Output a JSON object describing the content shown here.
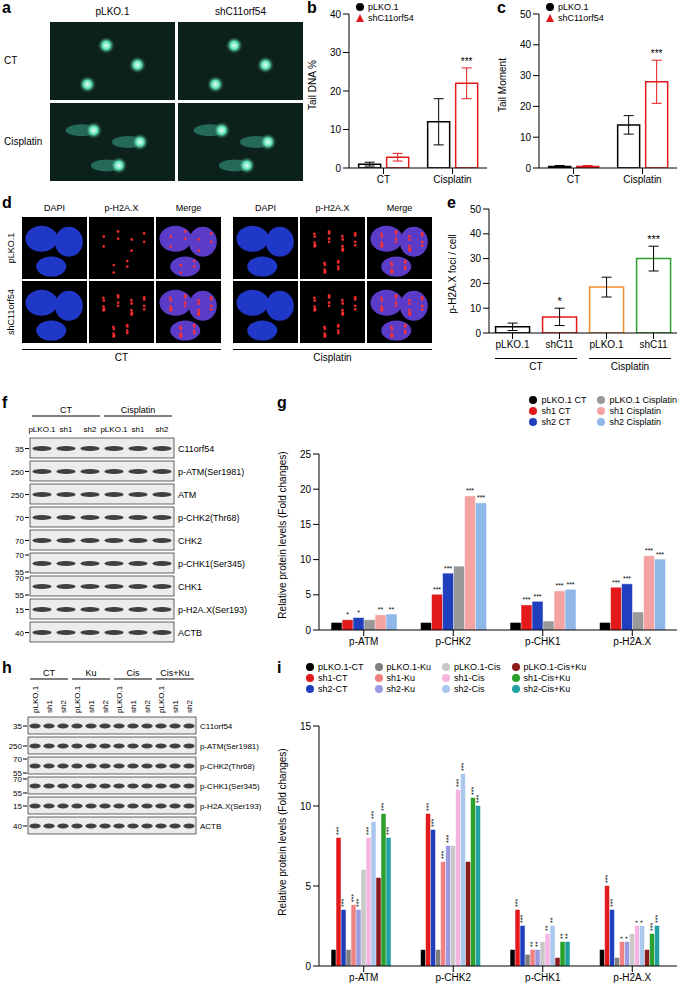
{
  "images": [
    {
      "panel": "a",
      "columns": [
        "pLKO.1",
        "shC11orf54"
      ],
      "rows": [
        "CT",
        "Cisplatin"
      ]
    },
    {
      "panel": "d",
      "channels": [
        "DAPI",
        "p-H2A.X",
        "Merge"
      ],
      "rows": [
        "pLKO.1",
        "shC11orf54"
      ],
      "conditions": [
        "CT",
        "Cisplatin"
      ]
    }
  ],
  "blots": [
    {
      "panel": "f",
      "conditions": [
        "CT",
        "Cisplatin"
      ],
      "lanes": [
        "pLKO.1",
        "sh1",
        "sh2"
      ],
      "rows": [
        {
          "name": "C11orf54",
          "markers": [
            35
          ]
        },
        {
          "name": "p-ATM(Ser1981)",
          "markers": [
            250
          ]
        },
        {
          "name": "ATM",
          "markers": [
            250
          ]
        },
        {
          "name": "p-CHK2(Thr68)",
          "markers": [
            70
          ]
        },
        {
          "name": "CHK2",
          "markers": [
            70
          ]
        },
        {
          "name": "p-CHK1(Ser345)",
          "markers": [
            70,
            55
          ]
        },
        {
          "name": "CHK1",
          "markers": [
            70,
            55
          ]
        },
        {
          "name": "p-H2A.X(Ser193)",
          "markers": [
            15
          ]
        },
        {
          "name": "ACTB",
          "markers": [
            40
          ]
        }
      ]
    },
    {
      "panel": "h",
      "conditions": [
        "CT",
        "Ku",
        "Cis",
        "Cis+Ku"
      ],
      "lanes": [
        "pLKO.1",
        "sh1",
        "sh2"
      ],
      "rows": [
        {
          "name": "C11orf54",
          "markers": [
            35
          ]
        },
        {
          "name": "p-ATM(Ser1981)",
          "markers": [
            250
          ]
        },
        {
          "name": "p-CHK2(Thr68)",
          "markers": [
            70,
            55
          ]
        },
        {
          "name": "p-CHK1(Ser345)",
          "markers": [
            70,
            55
          ]
        },
        {
          "name": "p-H2A.X(Ser193)",
          "markers": [
            15
          ]
        },
        {
          "name": "ACTB",
          "markers": [
            40
          ]
        }
      ]
    }
  ],
  "chart_data": [
    {
      "panel": "b",
      "type": "bar",
      "y_label": "Tail DNA %",
      "categories": [
        "CT",
        "Cisplatin"
      ],
      "ylim": [
        0,
        40
      ],
      "yticks": [
        0,
        10,
        20,
        30,
        40
      ],
      "legend": "top-left",
      "series": [
        {
          "name": "pLKO.1",
          "color": "#000000",
          "marker": "circle",
          "values": [
            1,
            12
          ],
          "errors": [
            0.5,
            6
          ],
          "significance": [
            null,
            null
          ]
        },
        {
          "name": "shC11orf54",
          "color": "#e31a1c",
          "marker": "triangle",
          "values": [
            2.8,
            22
          ],
          "errors": [
            1,
            4
          ],
          "significance": [
            null,
            "***"
          ]
        }
      ]
    },
    {
      "panel": "c",
      "type": "bar",
      "y_label": "Tail Moment",
      "categories": [
        "CT",
        "Cisplatin"
      ],
      "ylim": [
        0,
        50
      ],
      "yticks": [
        0,
        10,
        20,
        30,
        40,
        50
      ],
      "legend": "top-left",
      "series": [
        {
          "name": "pLKO.1",
          "color": "#000000",
          "marker": "circle",
          "values": [
            0.5,
            14
          ],
          "errors": [
            0.3,
            3
          ],
          "significance": [
            null,
            null
          ]
        },
        {
          "name": "shC11orf54",
          "color": "#e31a1c",
          "marker": "triangle",
          "values": [
            0.5,
            28
          ],
          "errors": [
            0.3,
            7
          ],
          "significance": [
            null,
            "***"
          ]
        }
      ]
    },
    {
      "panel": "e",
      "type": "bar",
      "y_label": "p-H2A.X foci / cell",
      "categories": [
        "pLKO.1",
        "shC11",
        "pLKO.1",
        "shC11"
      ],
      "groups": [
        "CT",
        "Cisplatin"
      ],
      "ylim": [
        0,
        50
      ],
      "yticks": [
        0,
        10,
        20,
        30,
        40,
        50
      ],
      "series": [
        {
          "colors": [
            "#000000",
            "#e31a1c",
            "#f28e2b",
            "#2ca02c"
          ],
          "values": [
            2.5,
            6.5,
            18.5,
            30
          ],
          "errors": [
            1.5,
            3.5,
            4,
            5
          ],
          "significance": [
            null,
            "*",
            null,
            "***"
          ]
        }
      ]
    },
    {
      "panel": "g",
      "type": "bar",
      "y_label": "Relative protein levels (Fold changes)",
      "categories": [
        "p-ATM",
        "p-CHK2",
        "p-CHK1",
        "p-H2A.X"
      ],
      "ylim": [
        0,
        25
      ],
      "yticks": [
        0,
        5,
        10,
        15,
        20,
        25
      ],
      "legend": "top-right",
      "series": [
        {
          "name": "pLKO.1 CT",
          "color": "#000000",
          "values": [
            1,
            1,
            1,
            1
          ]
        },
        {
          "name": "sh1 CT",
          "color": "#e31a1c",
          "values": [
            1.4,
            5,
            3.5,
            6
          ],
          "significance": [
            "*",
            "***",
            "***",
            "***"
          ]
        },
        {
          "name": "sh2 CT",
          "color": "#1f3fbf",
          "values": [
            1.7,
            8,
            4,
            6.5
          ],
          "significance": [
            "*",
            "***",
            "***",
            "***"
          ]
        },
        {
          "name": "pLKO.1 Cisplatin",
          "color": "#999999",
          "values": [
            1.4,
            9,
            1.2,
            2.5
          ]
        },
        {
          "name": "sh1 Cisplatin",
          "color": "#f4a3a3",
          "values": [
            2.1,
            19,
            5.5,
            10.5
          ],
          "significance": [
            "**",
            "***",
            "***",
            "***"
          ]
        },
        {
          "name": "sh2 Cisplatin",
          "color": "#8fb8e8",
          "values": [
            2.2,
            18,
            5.7,
            10
          ],
          "significance": [
            "**",
            "***",
            "***",
            "***"
          ]
        }
      ]
    },
    {
      "panel": "i",
      "type": "bar",
      "y_label": "Relative protein levels (Fold changes)",
      "categories": [
        "p-ATM",
        "p-CHK2",
        "p-CHK1",
        "p-H2A.X"
      ],
      "ylim": [
        0,
        15
      ],
      "yticks": [
        0,
        5,
        10,
        15
      ],
      "legend": "top",
      "series": [
        {
          "name": "pLKO.1-CT",
          "color": "#000000",
          "values": [
            1,
            1,
            1,
            1
          ]
        },
        {
          "name": "sh1-CT",
          "color": "#e31a1c",
          "values": [
            8,
            9.5,
            3.5,
            5
          ],
          "significance": [
            "***",
            "***",
            "***",
            "***"
          ]
        },
        {
          "name": "sh2-CT",
          "color": "#1f3fbf",
          "values": [
            3.5,
            8.5,
            2.5,
            3.5
          ],
          "significance": [
            "***",
            "***",
            "***",
            "***"
          ]
        },
        {
          "name": "pLKO.1-Ku",
          "color": "#7f7f7f",
          "values": [
            1,
            1,
            0.7,
            0.5
          ]
        },
        {
          "name": "sh1-Ku",
          "color": "#f08080",
          "values": [
            3.8,
            6.5,
            1,
            1.5
          ],
          "significance": [
            "***",
            "***",
            "**",
            "*"
          ]
        },
        {
          "name": "sh2-Ku",
          "color": "#9a9ae0",
          "values": [
            3.5,
            7.5,
            1,
            1.5
          ],
          "significance": [
            "***",
            "***",
            "**",
            "*"
          ]
        },
        {
          "name": "pLKO.1-Cis",
          "color": "#c8c8c8",
          "values": [
            6,
            7.5,
            1.5,
            2
          ]
        },
        {
          "name": "sh1-Cis",
          "color": "#f4b6e0",
          "values": [
            8,
            11,
            2,
            2.5
          ],
          "significance": [
            "***",
            "***",
            "**",
            "*"
          ]
        },
        {
          "name": "sh2-Cis",
          "color": "#a9c8ec",
          "values": [
            9,
            12,
            2.5,
            2.5
          ],
          "significance": [
            "***",
            "***",
            "**",
            "*"
          ]
        },
        {
          "name": "pLKO.1-Cis+Ku",
          "color": "#8b1a1a",
          "values": [
            5.5,
            6.5,
            0.5,
            1
          ]
        },
        {
          "name": "sh1-Cis+Ku",
          "color": "#2ca02c",
          "values": [
            9.5,
            10.5,
            1.5,
            2
          ],
          "significance": [
            "***",
            "***",
            "**",
            "***"
          ]
        },
        {
          "name": "sh2-Cis+Ku",
          "color": "#20a0a0",
          "values": [
            8,
            10,
            1.5,
            2.5
          ],
          "significance": [
            "***",
            "***",
            "**",
            "***"
          ]
        }
      ]
    }
  ]
}
